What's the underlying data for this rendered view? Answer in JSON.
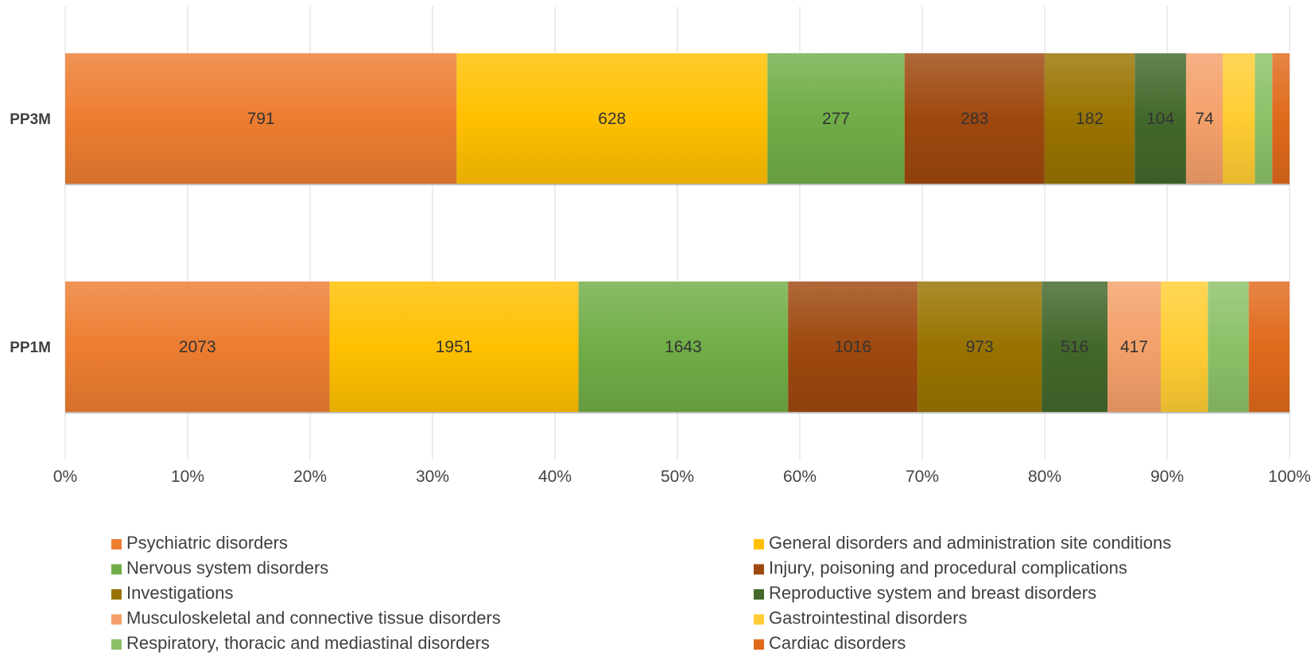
{
  "chart_data": {
    "type": "bar",
    "orientation": "horizontal",
    "stacked": "percent",
    "title": "",
    "xlabel": "",
    "ylabel": "",
    "xlim": [
      0,
      100
    ],
    "x_ticks": [
      "0%",
      "10%",
      "20%",
      "30%",
      "40%",
      "50%",
      "60%",
      "70%",
      "80%",
      "90%",
      "100%"
    ],
    "categories": [
      "PP3M",
      "PP1M"
    ],
    "series": [
      {
        "name": "Psychiatric disorders",
        "color": "#ED7D31",
        "values": [
          791,
          2073
        ],
        "labels": [
          "791",
          "2073"
        ]
      },
      {
        "name": "General disorders and administration site conditions",
        "color": "#FFC000",
        "values": [
          628,
          1951
        ],
        "labels": [
          "628",
          "1951"
        ]
      },
      {
        "name": "Nervous system disorders",
        "color": "#70AD47",
        "values": [
          277,
          1643
        ],
        "labels": [
          "277",
          "1643"
        ]
      },
      {
        "name": "Injury, poisoning and procedural complications",
        "color": "#9E480E",
        "values": [
          283,
          1016
        ],
        "labels": [
          "283",
          "1016"
        ]
      },
      {
        "name": "Investigations",
        "color": "#997300",
        "values": [
          182,
          973
        ],
        "labels": [
          "182",
          "973"
        ]
      },
      {
        "name": "Reproductive system and breast disorders",
        "color": "#43682B",
        "values": [
          104,
          516
        ],
        "labels": [
          "104",
          "516"
        ]
      },
      {
        "name": "Musculoskeletal and connective tissue disorders",
        "color": "#F4A06A",
        "values": [
          74,
          417
        ],
        "labels": [
          "74",
          "417"
        ]
      },
      {
        "name": "Gastrointestinal disorders",
        "color": "#FFCD33",
        "values": [
          65,
          370
        ],
        "labels": [
          "",
          ""
        ]
      },
      {
        "name": "Respiratory, thoracic and mediastinal disorders",
        "color": "#8CC168",
        "values": [
          35,
          320
        ],
        "labels": [
          "",
          ""
        ]
      },
      {
        "name": "Cardiac disorders",
        "color": "#E06A1C",
        "values": [
          35,
          320
        ],
        "labels": [
          "",
          ""
        ]
      }
    ],
    "legend_position": "bottom",
    "grid": true
  }
}
